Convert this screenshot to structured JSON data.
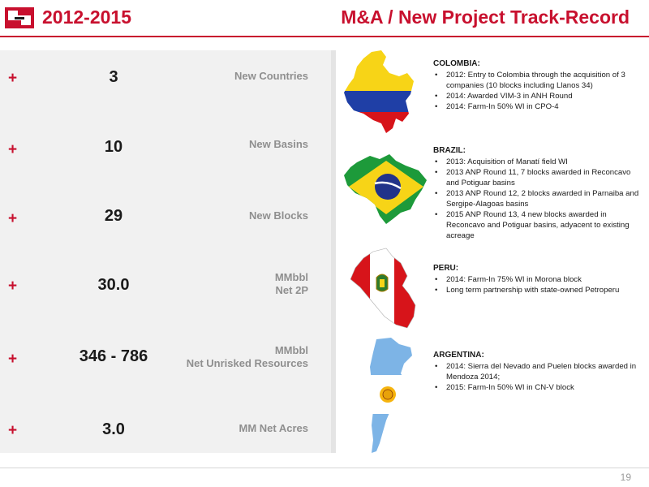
{
  "header": {
    "period": "2012-2015",
    "title": "M&A / New Project Track-Record"
  },
  "stats": [
    {
      "sign": "+",
      "value": "3",
      "label": "New Countries"
    },
    {
      "sign": "+",
      "value": "10",
      "label": "New Basins"
    },
    {
      "sign": "+",
      "value": "29",
      "label": "New Blocks"
    },
    {
      "sign": "+",
      "value": "30.0",
      "label_line1": "MMbbl",
      "label_line2": "Net 2P"
    },
    {
      "sign": "+",
      "value": "346 - 786",
      "label_line1": "MMbbl",
      "label_line2": "Net Unrisked Resources"
    },
    {
      "sign": "+",
      "value": "3.0",
      "label": "MM Net Acres"
    }
  ],
  "countries": [
    {
      "name": "COLOMBIA:",
      "items": [
        "2012: Entry to Colombia through the acquisition of 3 companies (10 blocks including Llanos 34)",
        "2014: Awarded VIM-3 in ANH Round",
        "2014: Farm-In 50% WI in CPO-4"
      ]
    },
    {
      "name": "BRAZIL:",
      "items": [
        "2013: Acquisition of Manatí field WI",
        "2013 ANP Round 11, 7 blocks awarded in Reconcavo and Potiguar basins",
        "2013 ANP Round 12, 2 blocks awarded in Parnaiba and Sergipe-Alagoas basins",
        "2015 ANP Round 13, 4 new blocks awarded in Reconcavo and Potiguar basins, adyacent to existing acreage"
      ]
    },
    {
      "name": "PERU:",
      "items": [
        "2014: Farm-In 75% WI in Morona block",
        "Long term partnership with state-owned Petroperu"
      ]
    },
    {
      "name": "ARGENTINA:",
      "items": [
        "2014: Sierra del Nevado and Puelen blocks awarded in Mendoza 2014;",
        "2015: Farm-In 50% WI in CN-V block"
      ]
    }
  ],
  "maps": {
    "colombia": "colombia-flag-map",
    "brazil": "brazil-flag-map",
    "peru": "peru-flag-map",
    "argentina": "argentina-flag-map"
  },
  "colors": {
    "accent": "#c8102e",
    "panel": "#f1f1f1",
    "label": "#8f8f8f"
  },
  "footer": {
    "page": "19"
  }
}
